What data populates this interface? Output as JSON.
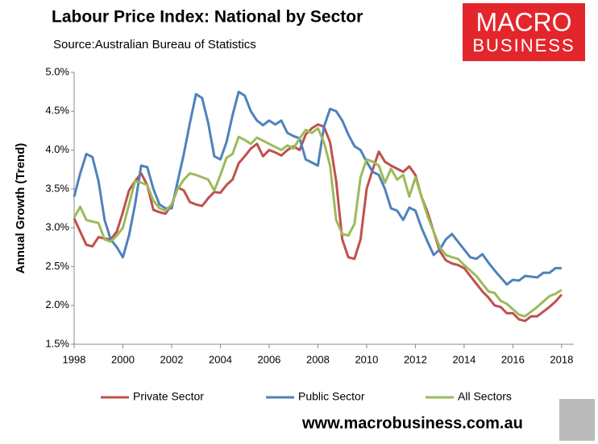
{
  "chart_data": {
    "type": "line",
    "title": "Labour Price Index: National by Sector",
    "subtitle": "Source:Australian Bureau of Statistics",
    "y_label": "Annual Growth (Trend)",
    "x": [
      1998,
      1998.25,
      1998.5,
      1998.75,
      1999,
      1999.25,
      1999.5,
      1999.75,
      2000,
      2000.25,
      2000.5,
      2000.75,
      2001,
      2001.25,
      2001.5,
      2001.75,
      2002,
      2002.25,
      2002.5,
      2002.75,
      2003,
      2003.25,
      2003.5,
      2003.75,
      2004,
      2004.25,
      2004.5,
      2004.75,
      2005,
      2005.25,
      2005.5,
      2005.75,
      2006,
      2006.25,
      2006.5,
      2006.75,
      2007,
      2007.25,
      2007.5,
      2007.75,
      2008,
      2008.25,
      2008.5,
      2008.75,
      2009,
      2009.25,
      2009.5,
      2009.75,
      2010,
      2010.25,
      2010.5,
      2010.75,
      2011,
      2011.25,
      2011.5,
      2011.75,
      2012,
      2012.25,
      2012.5,
      2012.75,
      2013,
      2013.25,
      2013.5,
      2013.75,
      2014,
      2014.25,
      2014.5,
      2014.75,
      2015,
      2015.25,
      2015.5,
      2015.75,
      2016,
      2016.25,
      2016.5,
      2016.75,
      2017,
      2017.25,
      2017.5,
      2017.75,
      2018
    ],
    "series": [
      {
        "name": "Private Sector",
        "color": "#c0504d",
        "values": [
          3.12,
          2.95,
          2.78,
          2.76,
          2.88,
          2.86,
          2.85,
          2.95,
          3.2,
          3.48,
          3.6,
          3.7,
          3.55,
          3.23,
          3.2,
          3.18,
          3.3,
          3.52,
          3.48,
          3.33,
          3.3,
          3.28,
          3.38,
          3.46,
          3.45,
          3.55,
          3.62,
          3.83,
          3.92,
          4.02,
          4.08,
          3.92,
          4.0,
          3.97,
          3.93,
          4.0,
          4.05,
          4.0,
          4.2,
          4.28,
          4.33,
          4.3,
          4.1,
          3.6,
          2.85,
          2.62,
          2.6,
          2.85,
          3.5,
          3.75,
          3.98,
          3.85,
          3.8,
          3.76,
          3.72,
          3.79,
          3.68,
          3.4,
          3.2,
          2.95,
          2.7,
          2.58,
          2.54,
          2.52,
          2.48,
          2.38,
          2.28,
          2.18,
          2.1,
          2.0,
          1.98,
          1.9,
          1.9,
          1.82,
          1.8,
          1.86,
          1.86,
          1.92,
          1.98,
          2.05,
          2.14
        ]
      },
      {
        "name": "Public Sector",
        "color": "#4f81bd",
        "values": [
          3.4,
          3.7,
          3.95,
          3.91,
          3.6,
          3.1,
          2.85,
          2.75,
          2.62,
          2.9,
          3.3,
          3.8,
          3.78,
          3.5,
          3.3,
          3.25,
          3.25,
          3.6,
          3.95,
          4.35,
          4.72,
          4.67,
          4.35,
          3.92,
          3.88,
          4.1,
          4.45,
          4.75,
          4.7,
          4.5,
          4.38,
          4.32,
          4.38,
          4.33,
          4.38,
          4.22,
          4.18,
          4.15,
          3.88,
          3.84,
          3.8,
          4.3,
          4.53,
          4.5,
          4.38,
          4.2,
          4.05,
          4.0,
          3.85,
          3.72,
          3.68,
          3.5,
          3.25,
          3.22,
          3.1,
          3.26,
          3.22,
          3.0,
          2.82,
          2.65,
          2.72,
          2.85,
          2.92,
          2.82,
          2.72,
          2.62,
          2.6,
          2.66,
          2.55,
          2.45,
          2.36,
          2.27,
          2.33,
          2.32,
          2.38,
          2.37,
          2.36,
          2.42,
          2.42,
          2.48,
          2.48
        ]
      },
      {
        "name": "All Sectors",
        "color": "#9bbb59",
        "values": [
          3.13,
          3.27,
          3.1,
          3.08,
          3.06,
          2.85,
          2.82,
          2.9,
          3.0,
          3.3,
          3.6,
          3.58,
          3.55,
          3.35,
          3.25,
          3.22,
          3.3,
          3.5,
          3.62,
          3.7,
          3.68,
          3.65,
          3.62,
          3.48,
          3.68,
          3.9,
          3.95,
          4.17,
          4.13,
          4.08,
          4.16,
          4.12,
          4.08,
          4.04,
          4.0,
          4.06,
          4.02,
          4.15,
          4.26,
          4.22,
          4.28,
          4.1,
          3.8,
          3.1,
          2.92,
          2.9,
          3.05,
          3.65,
          3.88,
          3.85,
          3.8,
          3.58,
          3.76,
          3.62,
          3.68,
          3.4,
          3.65,
          3.4,
          3.15,
          2.95,
          2.75,
          2.65,
          2.62,
          2.6,
          2.52,
          2.45,
          2.38,
          2.28,
          2.18,
          2.16,
          2.06,
          2.02,
          1.95,
          1.88,
          1.86,
          1.92,
          1.98,
          2.05,
          2.12,
          2.15,
          2.2
        ]
      }
    ],
    "xlim": [
      1998,
      2018.5
    ],
    "xticks": [
      1998,
      2000,
      2002,
      2004,
      2006,
      2008,
      2010,
      2012,
      2014,
      2016,
      2018
    ],
    "ylim": [
      1.5,
      5.0
    ],
    "yticks": [
      {
        "value": 1.5,
        "label": "1.5%"
      },
      {
        "value": 2.0,
        "label": "2.0%"
      },
      {
        "value": 2.5,
        "label": "2.5%"
      },
      {
        "value": 3.0,
        "label": "3.0%"
      },
      {
        "value": 3.5,
        "label": "3.5%"
      },
      {
        "value": 4.0,
        "label": "4.0%"
      },
      {
        "value": 4.5,
        "label": "4.5%"
      },
      {
        "value": 5.0,
        "label": "5.0%"
      }
    ],
    "grid": false,
    "legend": "bottom"
  },
  "branding": {
    "logo_top": "MACRO",
    "logo_bottom": "BUSINESS",
    "website": "www.macrobusiness.com.au"
  }
}
